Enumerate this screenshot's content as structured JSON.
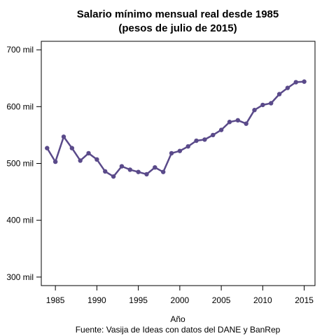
{
  "chart_data": {
    "type": "line",
    "title_line1": "Salario mínimo mensual real desde 1985",
    "title_line2": "(pesos de julio de 2015)",
    "xlabel": "Año",
    "ylabel": "",
    "caption": "Fuente: Vasija de Ideas con datos del DANE y BanRep",
    "xlim": [
      1983.3,
      2016.3
    ],
    "ylim": [
      285,
      715
    ],
    "x_ticks": [
      1985,
      1990,
      1995,
      2000,
      2005,
      2010,
      2015
    ],
    "x_tick_labels": [
      "1985",
      "1990",
      "1995",
      "2000",
      "2005",
      "2010",
      "2015"
    ],
    "y_ticks": [
      300,
      400,
      500,
      600,
      700
    ],
    "y_tick_labels": [
      "300 mil",
      "400 mil",
      "500 mil",
      "600 mil",
      "700 mil"
    ],
    "grid": false,
    "line_color": "#5a4a8a",
    "series": [
      {
        "x": [
          1984,
          1985,
          1986,
          1987,
          1988,
          1989,
          1990,
          1991,
          1992,
          1993,
          1994,
          1995,
          1996,
          1997,
          1998,
          1999,
          2000,
          2001,
          2002,
          2003,
          2004,
          2005,
          2006,
          2007,
          2008,
          2009,
          2010,
          2011,
          2012,
          2013,
          2014,
          2015
        ],
        "values": [
          527,
          503,
          547,
          527,
          505,
          518,
          507,
          486,
          477,
          495,
          489,
          485,
          481,
          493,
          485,
          518,
          522,
          530,
          540,
          542,
          550,
          559,
          573,
          576,
          570,
          594,
          603,
          606,
          622,
          633,
          643,
          644
        ]
      }
    ]
  }
}
